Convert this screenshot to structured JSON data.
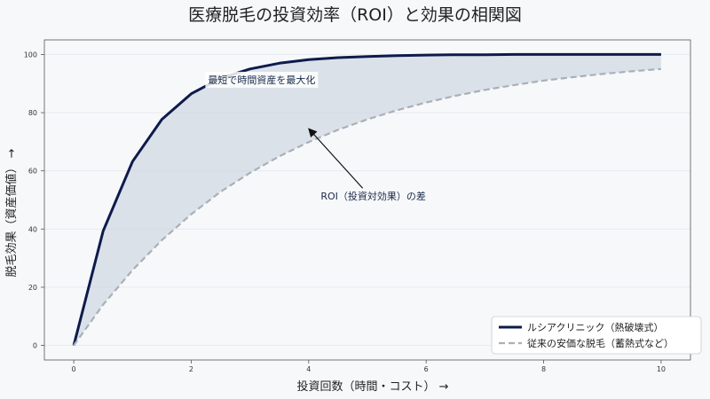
{
  "chart_data": {
    "type": "line",
    "title": "医療脱毛の投資効率（ROI）と効果の相関図",
    "xlabel": "投資回数（時間・コスト） →",
    "ylabel": "脱毛効果（資産価値） →",
    "xlim": [
      -0.5,
      10.5
    ],
    "ylim": [
      -5,
      105
    ],
    "xticks": [
      0,
      2,
      4,
      6,
      8,
      10
    ],
    "yticks": [
      0,
      20,
      40,
      60,
      80,
      100
    ],
    "grid": "horizontal",
    "legend": "bottom-right",
    "x": [
      0,
      0.5,
      1,
      1.5,
      2,
      2.5,
      3,
      3.5,
      4,
      4.5,
      5,
      5.5,
      6,
      6.5,
      7,
      7.5,
      8,
      8.5,
      9,
      9.5,
      10
    ],
    "series": [
      {
        "name": "ルシアクリニック（熱破壊式）",
        "style": "solid",
        "color": "#0d1b4c",
        "values": [
          0,
          39.3,
          63.2,
          77.7,
          86.5,
          91.8,
          95.0,
          97.0,
          98.2,
          98.9,
          99.3,
          99.6,
          99.8,
          99.9,
          99.9,
          100,
          100,
          100,
          100,
          100,
          100
        ]
      },
      {
        "name": "従来の安価な脱毛（蓄熱式など）",
        "style": "dashed",
        "color": "#aab0b8",
        "values": [
          0,
          14.0,
          25.9,
          36.2,
          45.1,
          52.8,
          59.3,
          65.0,
          69.9,
          74.1,
          77.7,
          80.8,
          83.5,
          85.8,
          87.8,
          89.5,
          91.0,
          92.2,
          93.3,
          94.2,
          95.0
        ]
      }
    ],
    "fill_between": {
      "color": "#ccd4e0"
    },
    "annotations": [
      {
        "text": "最短で時間資産を最大化",
        "x": 3.2,
        "y": 91
      },
      {
        "text": "ROI（投資対効果）の差",
        "text_x": 5.1,
        "text_y": 51,
        "arrow_to_x": 4.0,
        "arrow_to_y": 74.5
      }
    ]
  }
}
